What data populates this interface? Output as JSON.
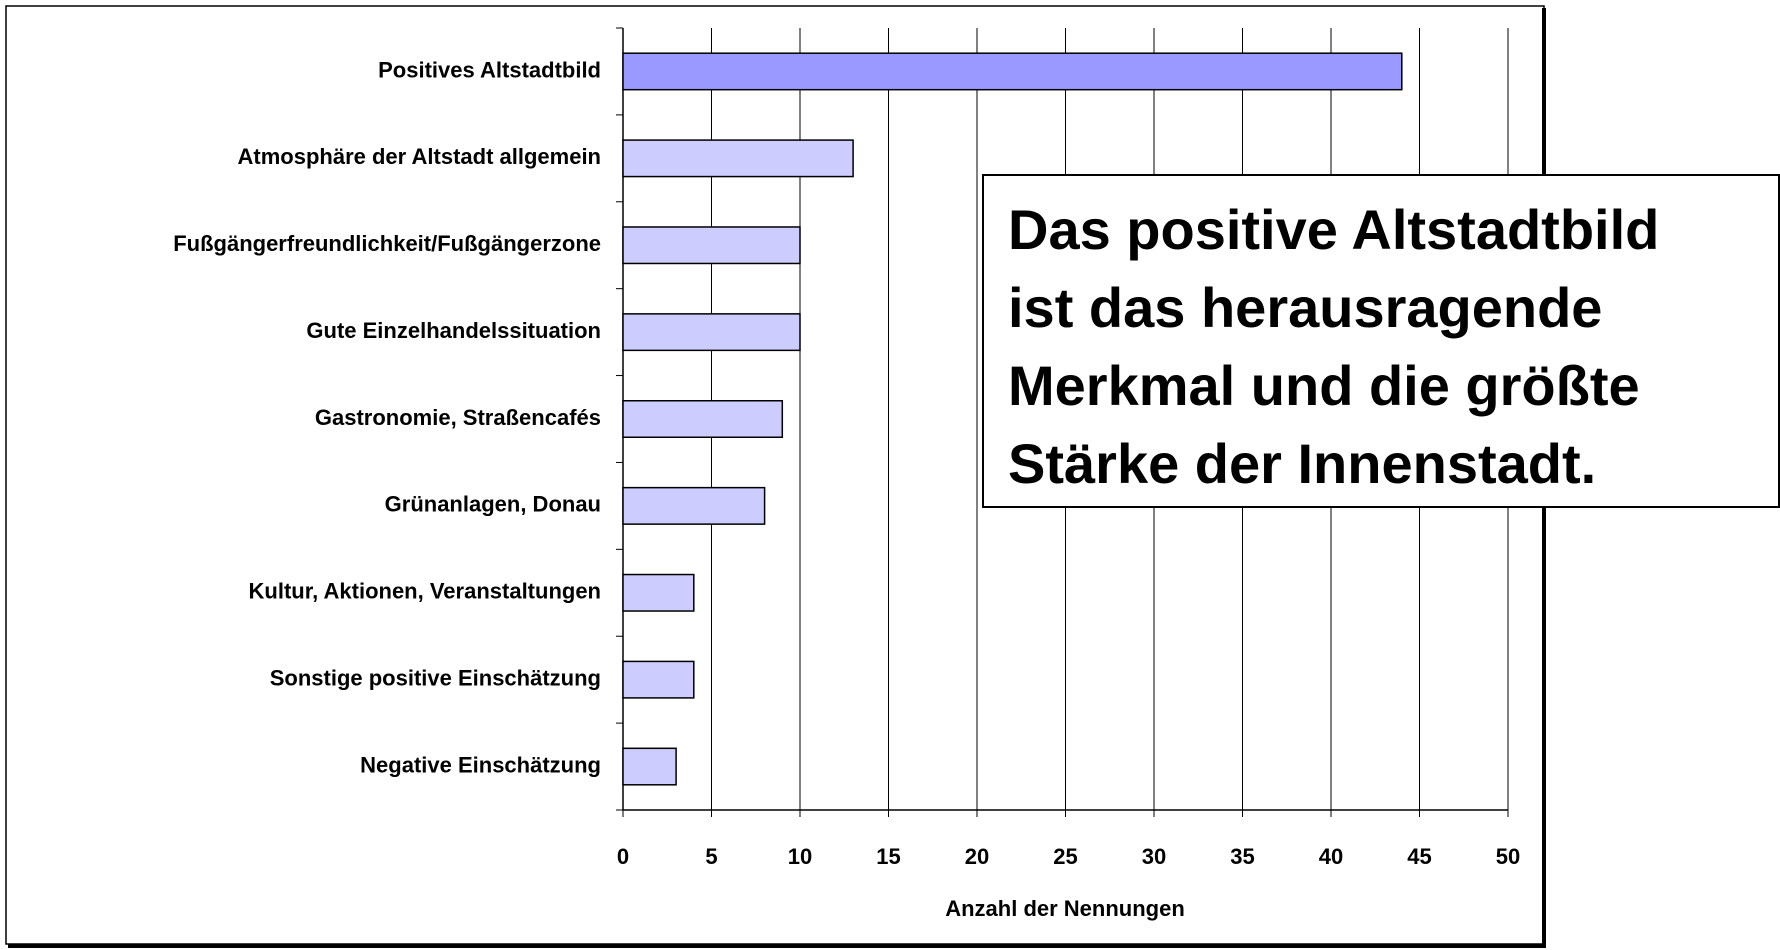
{
  "chart_data": {
    "type": "barh",
    "categories": [
      "Positives Altstadtbild",
      "Atmosphäre der Altstadt allgemein",
      "Fußgängerfreundlichkeit/Fußgängerzone",
      "Gute Einzelhandelssituation",
      "Gastronomie, Straßencafés",
      "Grünanlagen, Donau",
      "Kultur, Aktionen, Veranstaltungen",
      "Sonstige positive Einschätzung",
      "Negative Einschätzung"
    ],
    "values": [
      44,
      13,
      10,
      10,
      9,
      8,
      4,
      4,
      3
    ],
    "colors": [
      "#9999ff",
      "#ccccff",
      "#ccccff",
      "#ccccff",
      "#ccccff",
      "#ccccff",
      "#ccccff",
      "#ccccff",
      "#ccccff"
    ],
    "xlim": [
      0,
      50
    ],
    "xticks": [
      0,
      5,
      10,
      15,
      20,
      25,
      30,
      35,
      40,
      45,
      50
    ],
    "grid": true,
    "xlabel": "Anzahl der Nennungen",
    "annotation": [
      "Das positive Altstadtbild",
      "ist das herausragende",
      "Merkmal und die größte",
      "Stärke der Innenstadt."
    ]
  }
}
